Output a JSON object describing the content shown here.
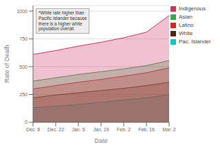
{
  "chart_data": {
    "type": "area",
    "xlabel": "Date",
    "ylabel": "Rate of Death",
    "categories": [
      "Dec. 8",
      "Dec. 22",
      "Jan. 5",
      "Jan. 19",
      "Feb. 2",
      "Feb. 16",
      "Mar. 2"
    ],
    "series": [
      {
        "name": "Pac. Islander",
        "color": "#00cccc",
        "values": [
          130,
          145,
          160,
          180,
          200,
          220,
          248
        ]
      },
      {
        "name": "White",
        "color": "#552211",
        "values": [
          220,
          245,
          265,
          285,
          305,
          330,
          360
        ]
      },
      {
        "name": "Latino",
        "color": "#dd2222",
        "values": [
          300,
          330,
          360,
          385,
          415,
          445,
          490
        ]
      },
      {
        "name": "Asian",
        "color": "#33aa44",
        "values": [
          370,
          400,
          430,
          455,
          480,
          510,
          555
        ]
      },
      {
        "name": "Indigenous",
        "color": "#cc3366",
        "values": [
          610,
          645,
          685,
          720,
          760,
          810,
          960
        ]
      }
    ],
    "ylim": [
      0,
      1050
    ],
    "yticks": [
      0,
      250,
      500,
      750,
      1000
    ],
    "grid": true,
    "legend": "upper right",
    "annotations": [
      "*White rate higher than\nPacific Islander because\nthere is a higher white\npopulation overall."
    ]
  }
}
